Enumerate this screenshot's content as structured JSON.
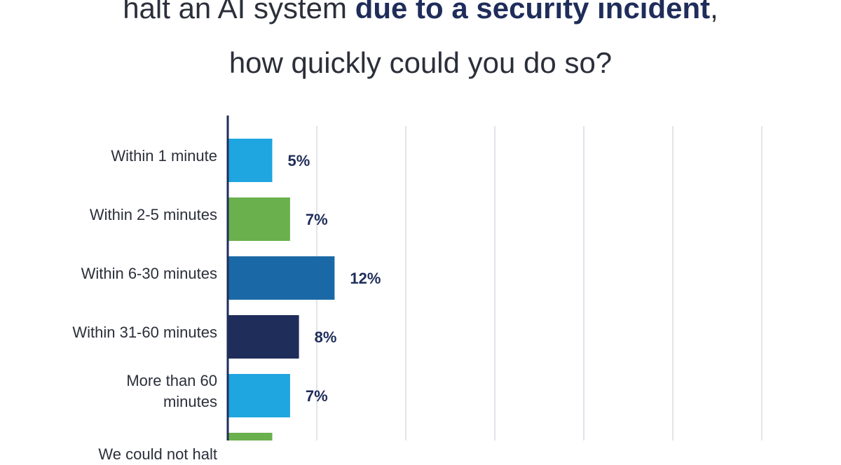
{
  "chart_data": {
    "type": "barh",
    "title_parts": [
      {
        "text": "halt an AI system ",
        "bold": false
      },
      {
        "text": "due to a security incident",
        "bold": true
      },
      {
        "text": ",",
        "bold": false
      }
    ],
    "subtitle": "how quickly could you do so?",
    "categories": [
      "Within 1 minute",
      "Within 2-5 minutes",
      "Within 6-30 minutes",
      "Within 31-60 minutes",
      "More than 60\nminutes",
      "We could not halt"
    ],
    "values": [
      5,
      7,
      12,
      8,
      7,
      5
    ],
    "value_labels": [
      "5%",
      "7%",
      "12%",
      "8%",
      "7%",
      null
    ],
    "colors": [
      "#1fa5e0",
      "#6ab04c",
      "#1a69a6",
      "#1f2d5a",
      "#1fa5e0",
      "#6ab04c"
    ],
    "xlim": [
      0,
      60
    ],
    "xticks": [
      10,
      20,
      30,
      40,
      50,
      60
    ],
    "grid": true,
    "tick_labels": false
  }
}
